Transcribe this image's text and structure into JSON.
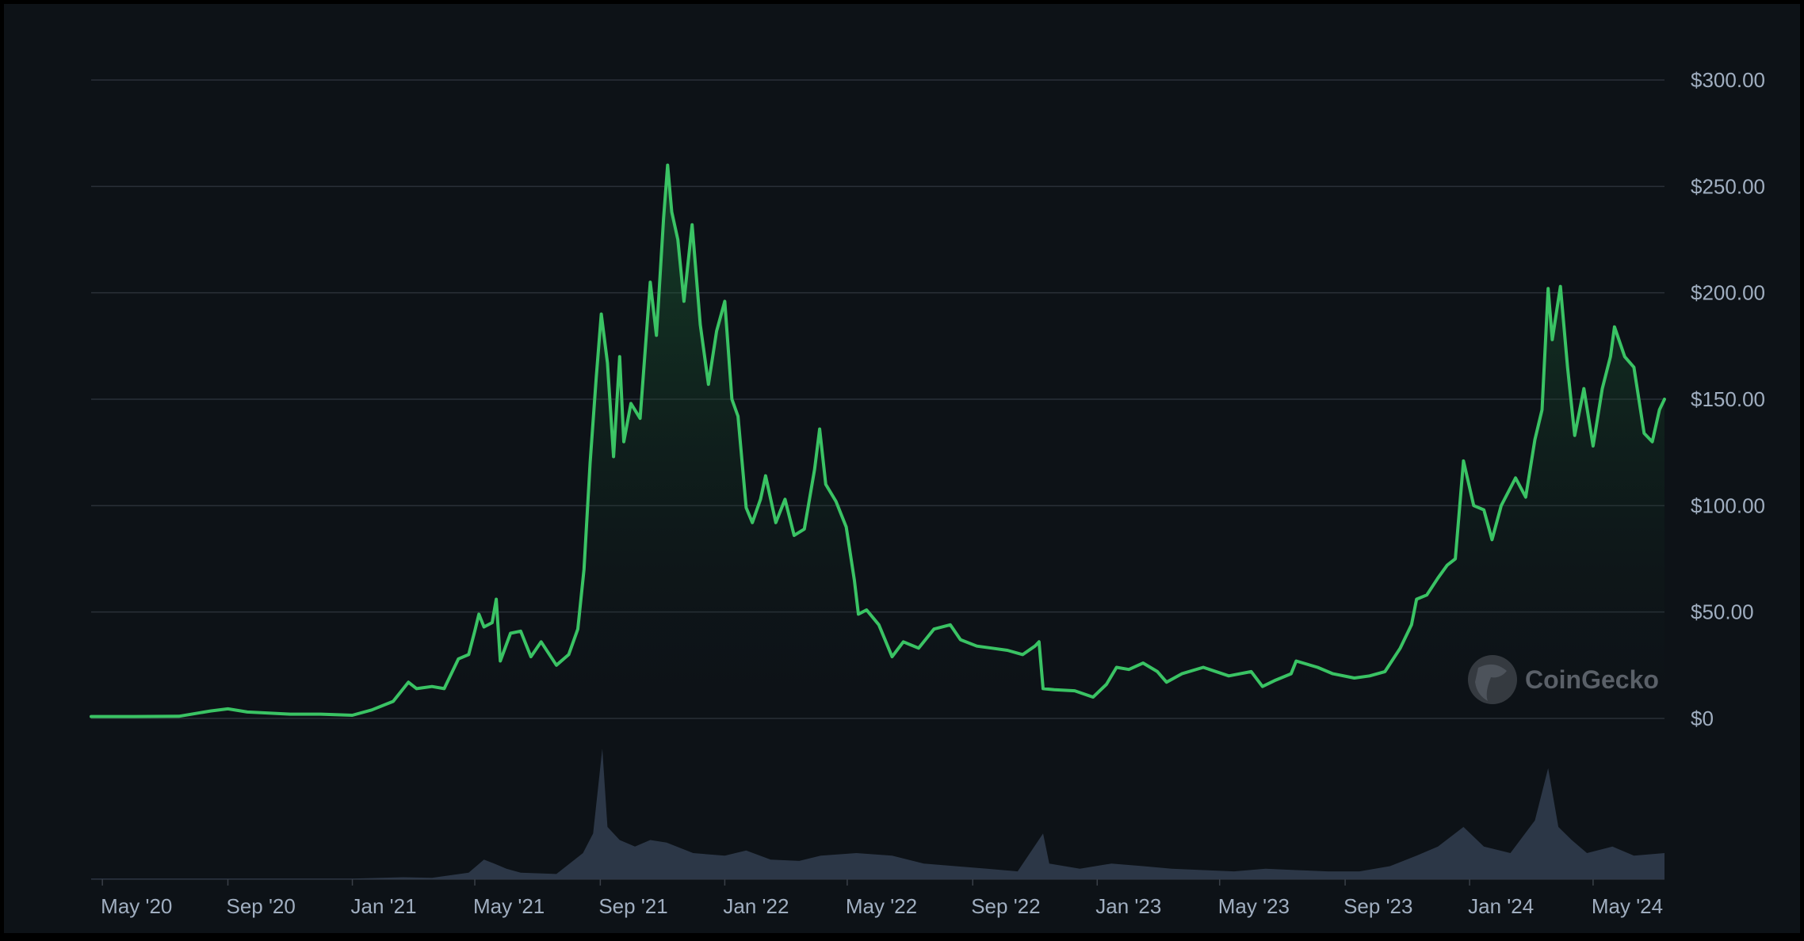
{
  "chart_data": {
    "type": "area",
    "title": "",
    "xlabel": "",
    "ylabel": "",
    "y_ticks": [
      "$0",
      "$50.00",
      "$100.00",
      "$150.00",
      "$200.00",
      "$250.00",
      "$300.00"
    ],
    "x_ticks": [
      "May '20",
      "Sep '20",
      "Jan '21",
      "May '21",
      "Sep '21",
      "Jan '22",
      "May '22",
      "Sep '22",
      "Jan '23",
      "May '23",
      "Sep '23",
      "Jan '24",
      "May '24"
    ],
    "ylim": [
      0,
      300
    ],
    "xlim": [
      "2020-04-20",
      "2024-07-10"
    ],
    "grid": "horizontal",
    "colors": {
      "line": "#3ac364",
      "volume": "#2e3a4a",
      "grid": "#2a3038"
    },
    "series": [
      {
        "role": "price",
        "points": [
          [
            "2020-04-20",
            0.9
          ],
          [
            "2020-06-01",
            0.9
          ],
          [
            "2020-07-15",
            1.0
          ],
          [
            "2020-08-15",
            3.5
          ],
          [
            "2020-09-01",
            4.5
          ],
          [
            "2020-09-20",
            3.0
          ],
          [
            "2020-11-01",
            2.0
          ],
          [
            "2020-12-01",
            2.0
          ],
          [
            "2021-01-01",
            1.5
          ],
          [
            "2021-01-20",
            4.0
          ],
          [
            "2021-02-10",
            8.0
          ],
          [
            "2021-02-25",
            17.0
          ],
          [
            "2021-03-05",
            14.0
          ],
          [
            "2021-03-20",
            15.0
          ],
          [
            "2021-04-01",
            14.0
          ],
          [
            "2021-04-15",
            28.0
          ],
          [
            "2021-04-25",
            30.0
          ],
          [
            "2021-05-01",
            41.0
          ],
          [
            "2021-05-05",
            49.0
          ],
          [
            "2021-05-10",
            43.0
          ],
          [
            "2021-05-18",
            45.0
          ],
          [
            "2021-05-22",
            56.0
          ],
          [
            "2021-05-26",
            27.0
          ],
          [
            "2021-06-05",
            40.0
          ],
          [
            "2021-06-15",
            41.0
          ],
          [
            "2021-06-25",
            29.0
          ],
          [
            "2021-07-05",
            36.0
          ],
          [
            "2021-07-20",
            25.0
          ],
          [
            "2021-08-01",
            30.0
          ],
          [
            "2021-08-10",
            42.0
          ],
          [
            "2021-08-16",
            70.0
          ],
          [
            "2021-08-22",
            120.0
          ],
          [
            "2021-08-28",
            160.0
          ],
          [
            "2021-09-02",
            190.0
          ],
          [
            "2021-09-08",
            167.0
          ],
          [
            "2021-09-14",
            123.0
          ],
          [
            "2021-09-20",
            170.0
          ],
          [
            "2021-09-24",
            130.0
          ],
          [
            "2021-10-01",
            148.0
          ],
          [
            "2021-10-10",
            141.0
          ],
          [
            "2021-10-20",
            205.0
          ],
          [
            "2021-10-26",
            180.0
          ],
          [
            "2021-11-02",
            235.0
          ],
          [
            "2021-11-06",
            260.0
          ],
          [
            "2021-11-10",
            238.0
          ],
          [
            "2021-11-16",
            225.0
          ],
          [
            "2021-11-22",
            196.0
          ],
          [
            "2021-11-30",
            232.0
          ],
          [
            "2021-12-08",
            185.0
          ],
          [
            "2021-12-16",
            157.0
          ],
          [
            "2021-12-24",
            182.0
          ],
          [
            "2022-01-01",
            196.0
          ],
          [
            "2022-01-08",
            150.0
          ],
          [
            "2022-01-14",
            142.0
          ],
          [
            "2022-01-22",
            99.0
          ],
          [
            "2022-01-28",
            92.0
          ],
          [
            "2022-02-05",
            103.0
          ],
          [
            "2022-02-10",
            114.0
          ],
          [
            "2022-02-20",
            92.0
          ],
          [
            "2022-03-01",
            103.0
          ],
          [
            "2022-03-10",
            86.0
          ],
          [
            "2022-03-20",
            89.0
          ],
          [
            "2022-03-30",
            117.0
          ],
          [
            "2022-04-04",
            136.0
          ],
          [
            "2022-04-10",
            110.0
          ],
          [
            "2022-04-20",
            102.0
          ],
          [
            "2022-04-30",
            90.0
          ],
          [
            "2022-05-08",
            65.0
          ],
          [
            "2022-05-12",
            49.0
          ],
          [
            "2022-05-20",
            51.0
          ],
          [
            "2022-06-01",
            44.0
          ],
          [
            "2022-06-14",
            29.0
          ],
          [
            "2022-06-25",
            36.0
          ],
          [
            "2022-07-10",
            33.0
          ],
          [
            "2022-07-25",
            42.0
          ],
          [
            "2022-08-10",
            44.0
          ],
          [
            "2022-08-20",
            37.0
          ],
          [
            "2022-09-05",
            34.0
          ],
          [
            "2022-09-20",
            33.0
          ],
          [
            "2022-10-05",
            32.0
          ],
          [
            "2022-10-20",
            30.0
          ],
          [
            "2022-11-01",
            34.0
          ],
          [
            "2022-11-05",
            36.0
          ],
          [
            "2022-11-09",
            14.0
          ],
          [
            "2022-11-20",
            13.5
          ],
          [
            "2022-12-10",
            13.0
          ],
          [
            "2022-12-28",
            10.0
          ],
          [
            "2023-01-10",
            16.0
          ],
          [
            "2023-01-20",
            24.0
          ],
          [
            "2023-02-01",
            23.0
          ],
          [
            "2023-02-15",
            26.0
          ],
          [
            "2023-03-01",
            22.0
          ],
          [
            "2023-03-10",
            17.0
          ],
          [
            "2023-03-25",
            21.0
          ],
          [
            "2023-04-15",
            24.0
          ],
          [
            "2023-05-10",
            20.0
          ],
          [
            "2023-06-01",
            22.0
          ],
          [
            "2023-06-12",
            15.0
          ],
          [
            "2023-06-25",
            18.0
          ],
          [
            "2023-07-10",
            21.0
          ],
          [
            "2023-07-15",
            27.0
          ],
          [
            "2023-08-05",
            24.0
          ],
          [
            "2023-08-20",
            21.0
          ],
          [
            "2023-09-10",
            19.0
          ],
          [
            "2023-09-25",
            20.0
          ],
          [
            "2023-10-10",
            22.0
          ],
          [
            "2023-10-25",
            33.0
          ],
          [
            "2023-11-05",
            44.0
          ],
          [
            "2023-11-10",
            56.0
          ],
          [
            "2023-11-20",
            58.0
          ],
          [
            "2023-12-01",
            66.0
          ],
          [
            "2023-12-10",
            72.0
          ],
          [
            "2023-12-18",
            75.0
          ],
          [
            "2023-12-26",
            121.0
          ],
          [
            "2024-01-05",
            100.0
          ],
          [
            "2024-01-15",
            98.0
          ],
          [
            "2024-01-23",
            84.0
          ],
          [
            "2024-02-01",
            100.0
          ],
          [
            "2024-02-15",
            113.0
          ],
          [
            "2024-02-25",
            104.0
          ],
          [
            "2024-03-05",
            131.0
          ],
          [
            "2024-03-12",
            145.0
          ],
          [
            "2024-03-18",
            202.0
          ],
          [
            "2024-03-22",
            178.0
          ],
          [
            "2024-03-30",
            203.0
          ],
          [
            "2024-04-06",
            165.0
          ],
          [
            "2024-04-13",
            133.0
          ],
          [
            "2024-04-22",
            155.0
          ],
          [
            "2024-05-01",
            128.0
          ],
          [
            "2024-05-10",
            155.0
          ],
          [
            "2024-05-18",
            170.0
          ],
          [
            "2024-05-22",
            184.0
          ],
          [
            "2024-06-01",
            170.0
          ],
          [
            "2024-06-10",
            165.0
          ],
          [
            "2024-06-20",
            134.0
          ],
          [
            "2024-06-28",
            130.0
          ],
          [
            "2024-07-05",
            145.0
          ],
          [
            "2024-07-10",
            150.0
          ]
        ]
      },
      {
        "role": "volume",
        "points": [
          [
            "2020-04-20",
            0.5
          ],
          [
            "2021-01-01",
            0.5
          ],
          [
            "2021-02-20",
            1.5
          ],
          [
            "2021-03-20",
            1.0
          ],
          [
            "2021-04-25",
            5.0
          ],
          [
            "2021-05-10",
            15.0
          ],
          [
            "2021-05-20",
            12.0
          ],
          [
            "2021-06-01",
            8.0
          ],
          [
            "2021-06-15",
            5.0
          ],
          [
            "2021-07-20",
            4.0
          ],
          [
            "2021-08-15",
            20.0
          ],
          [
            "2021-08-25",
            35.0
          ],
          [
            "2021-09-03",
            100.0
          ],
          [
            "2021-09-08",
            40.0
          ],
          [
            "2021-09-20",
            30.0
          ],
          [
            "2021-10-05",
            25.0
          ],
          [
            "2021-10-20",
            30.0
          ],
          [
            "2021-11-05",
            28.0
          ],
          [
            "2021-12-01",
            20.0
          ],
          [
            "2022-01-01",
            18.0
          ],
          [
            "2022-01-22",
            22.0
          ],
          [
            "2022-02-15",
            15.0
          ],
          [
            "2022-03-15",
            14.0
          ],
          [
            "2022-04-05",
            18.0
          ],
          [
            "2022-05-10",
            20.0
          ],
          [
            "2022-06-14",
            18.0
          ],
          [
            "2022-07-15",
            12.0
          ],
          [
            "2022-08-15",
            10.0
          ],
          [
            "2022-09-15",
            8.0
          ],
          [
            "2022-10-15",
            6.0
          ],
          [
            "2022-11-09",
            35.0
          ],
          [
            "2022-11-15",
            12.0
          ],
          [
            "2022-12-15",
            8.0
          ],
          [
            "2023-01-15",
            12.0
          ],
          [
            "2023-02-15",
            10.0
          ],
          [
            "2023-03-15",
            8.0
          ],
          [
            "2023-04-15",
            7.0
          ],
          [
            "2023-05-15",
            6.0
          ],
          [
            "2023-06-15",
            8.0
          ],
          [
            "2023-07-15",
            7.0
          ],
          [
            "2023-08-15",
            6.0
          ],
          [
            "2023-09-15",
            6.0
          ],
          [
            "2023-10-15",
            10.0
          ],
          [
            "2023-11-10",
            18.0
          ],
          [
            "2023-12-01",
            25.0
          ],
          [
            "2023-12-26",
            40.0
          ],
          [
            "2024-01-15",
            25.0
          ],
          [
            "2024-02-10",
            20.0
          ],
          [
            "2024-03-05",
            45.0
          ],
          [
            "2024-03-18",
            85.0
          ],
          [
            "2024-03-28",
            40.0
          ],
          [
            "2024-04-10",
            30.0
          ],
          [
            "2024-04-25",
            20.0
          ],
          [
            "2024-05-20",
            25.0
          ],
          [
            "2024-06-10",
            18.0
          ],
          [
            "2024-07-10",
            20.0
          ]
        ]
      }
    ],
    "watermark": "CoinGecko"
  }
}
